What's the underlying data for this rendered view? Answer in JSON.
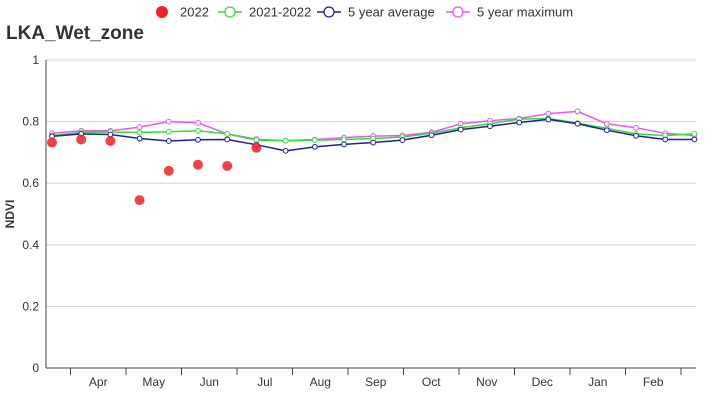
{
  "chart_data": {
    "type": "line",
    "title": "LKA_Wet_zone",
    "ylabel": "NDVI",
    "xlabel": "",
    "ylim": [
      0,
      1
    ],
    "yticks": [
      "0",
      "0.2",
      "0.4",
      "0.6",
      "0.8",
      "1"
    ],
    "month_labels": [
      "Apr",
      "May",
      "Jun",
      "Jul",
      "Aug",
      "Sep",
      "Oct",
      "Nov",
      "Dec",
      "Jan",
      "Feb"
    ],
    "legend_position": "top",
    "grid": true,
    "series": [
      {
        "name": "2022",
        "kind": "scatter",
        "color": "#ee2222",
        "values": [
          0.732,
          0.742,
          0.737,
          0.545,
          0.64,
          0.66,
          0.656,
          0.715
        ]
      },
      {
        "name": "2021-2022",
        "kind": "line",
        "color": "#33dd33",
        "values": [
          0.755,
          0.765,
          0.766,
          0.765,
          0.767,
          0.77,
          0.76,
          0.74,
          0.738,
          0.74,
          0.742,
          0.745,
          0.75,
          0.762,
          0.78,
          0.793,
          0.808,
          0.81,
          0.795,
          0.778,
          0.76,
          0.755,
          0.76
        ]
      },
      {
        "name": "5 year average",
        "kind": "line",
        "color": "#1f1fa3",
        "values": [
          0.752,
          0.76,
          0.758,
          0.745,
          0.737,
          0.741,
          0.742,
          0.725,
          0.705,
          0.718,
          0.726,
          0.732,
          0.74,
          0.756,
          0.774,
          0.785,
          0.797,
          0.807,
          0.793,
          0.772,
          0.754,
          0.742,
          0.742
        ]
      },
      {
        "name": "5 year maximum",
        "kind": "line",
        "color": "#ee55ee",
        "values": [
          0.762,
          0.77,
          0.77,
          0.782,
          0.8,
          0.796,
          0.76,
          0.743,
          0.738,
          0.742,
          0.748,
          0.753,
          0.755,
          0.765,
          0.793,
          0.803,
          0.81,
          0.826,
          0.833,
          0.793,
          0.78,
          0.762,
          0.755
        ]
      }
    ]
  }
}
